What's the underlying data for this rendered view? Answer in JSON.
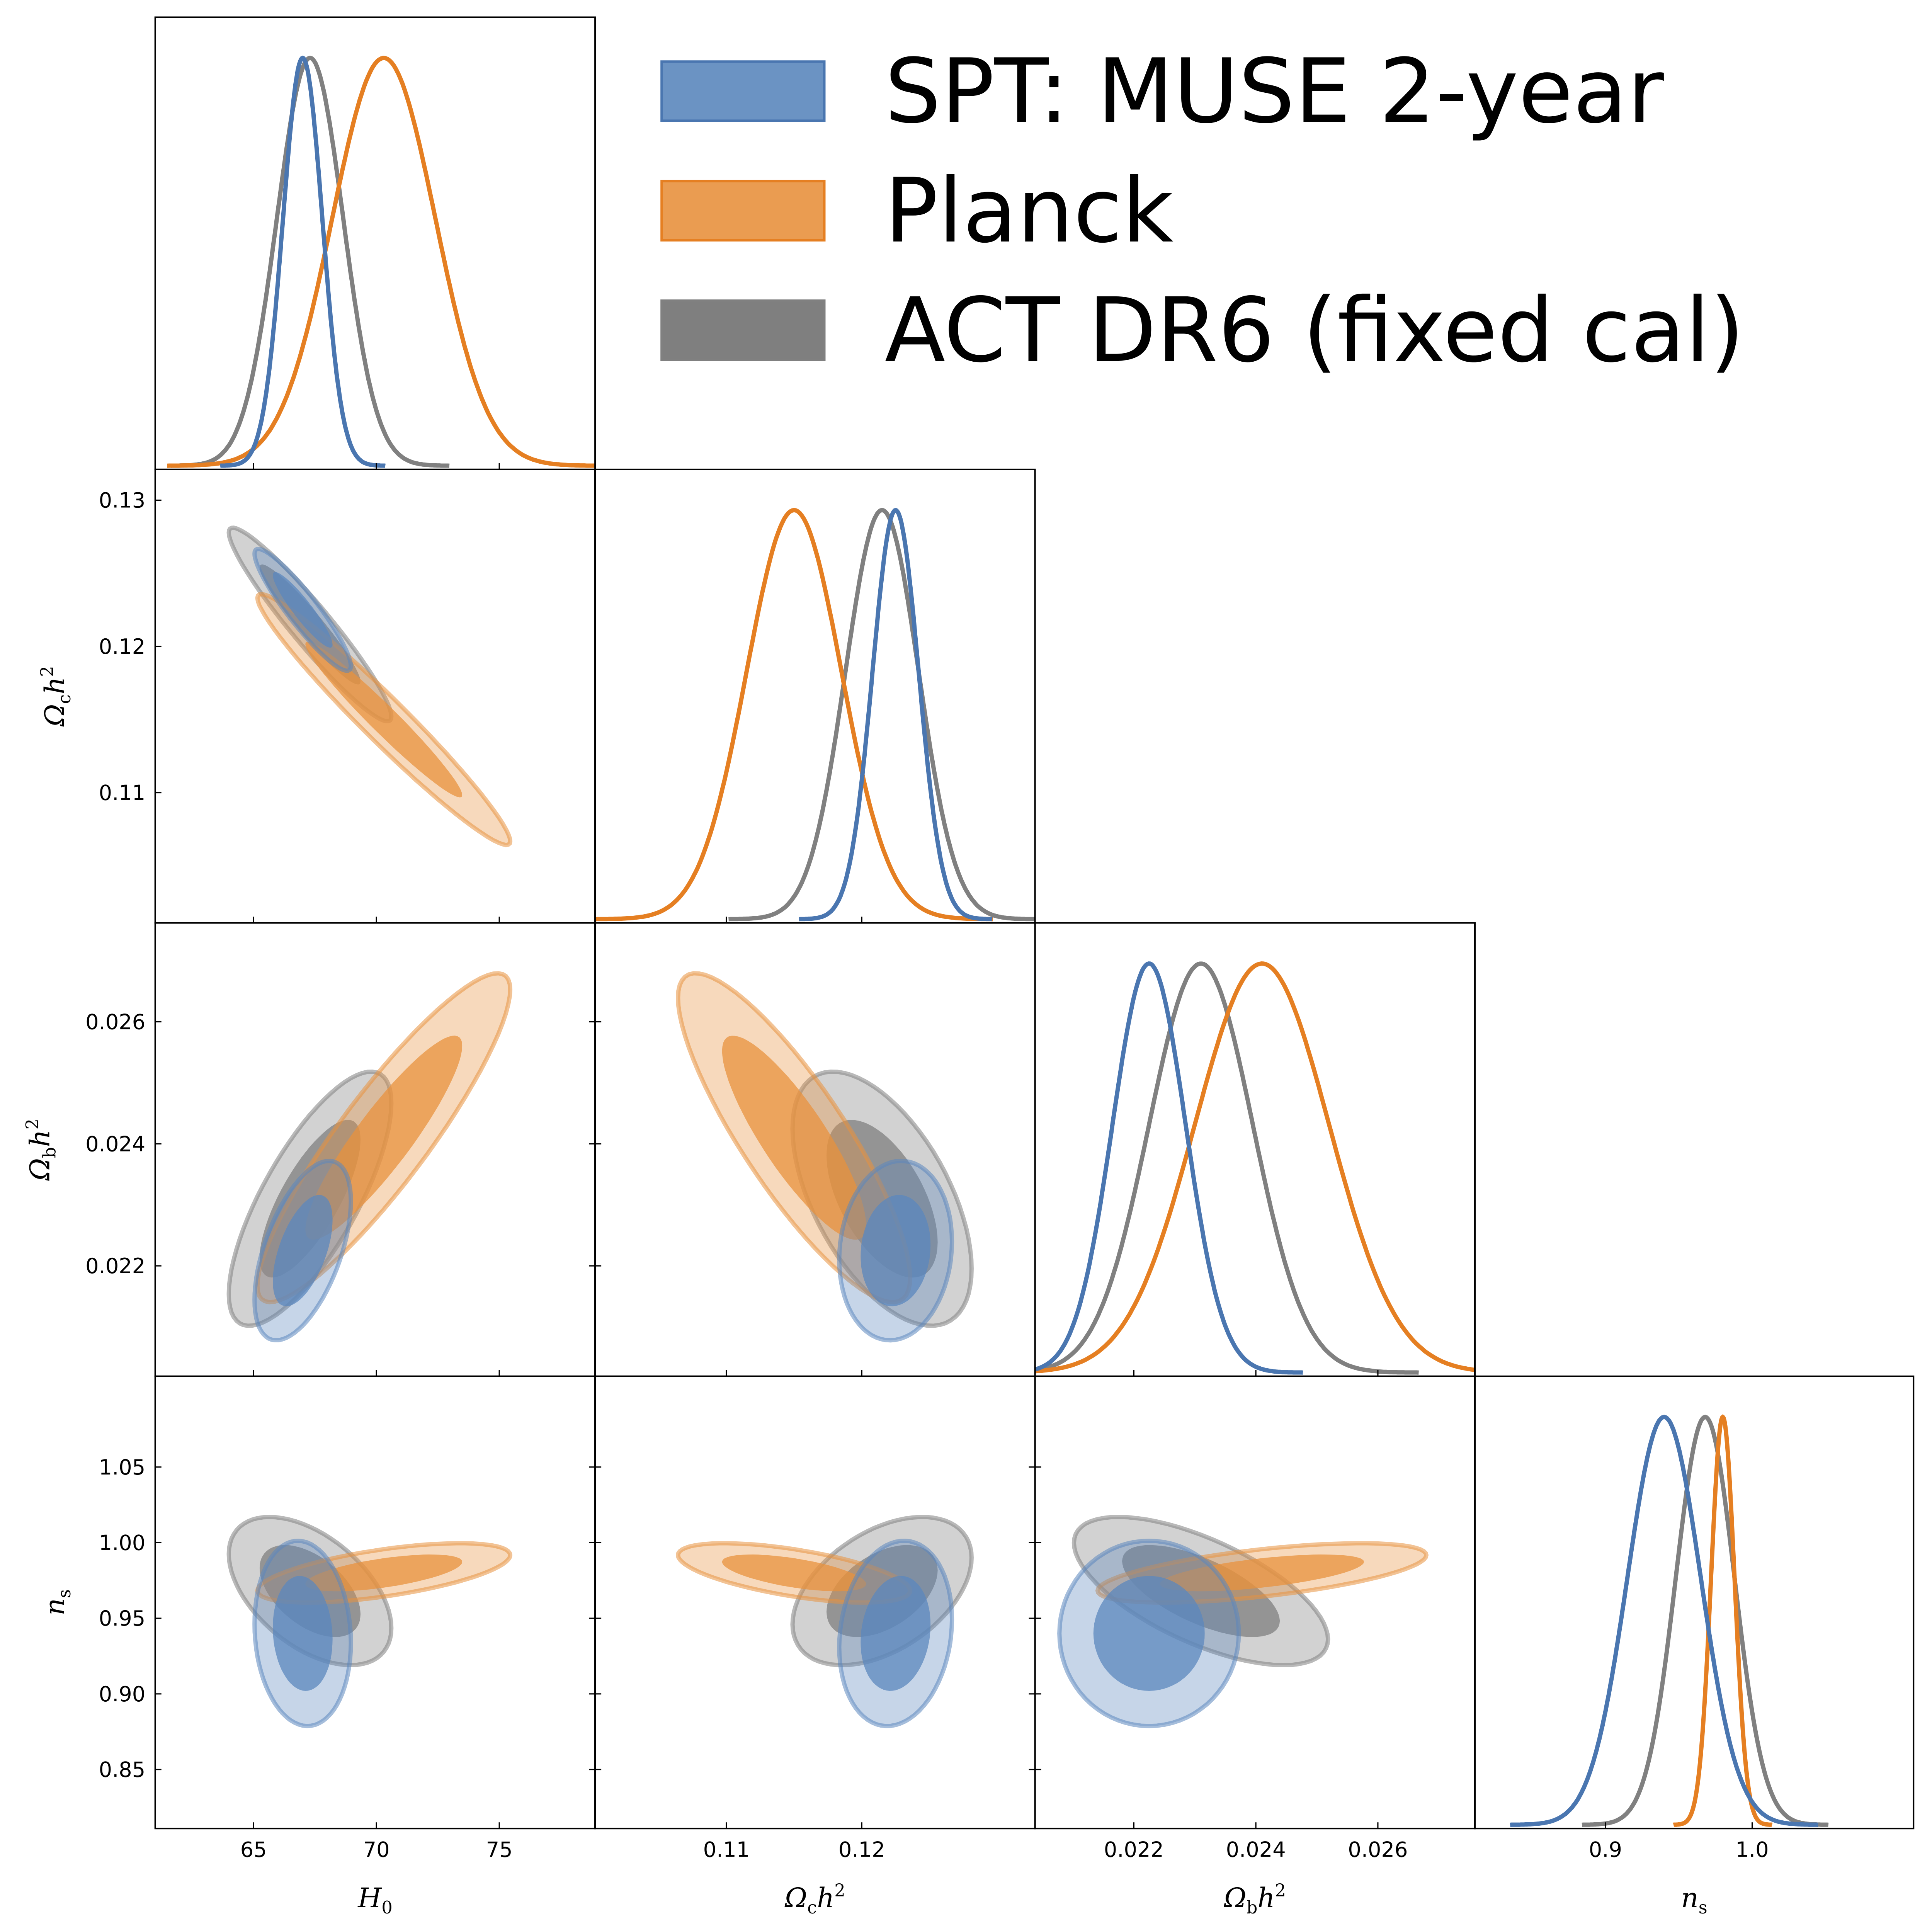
{
  "chart_data": {
    "type": "corner",
    "title": "",
    "parameters": [
      {
        "key": "H0",
        "label": "H₀",
        "range": [
          61.0,
          78.9
        ],
        "ticks": [
          65,
          70,
          75
        ],
        "tick_labels": [
          "65",
          "70",
          "75"
        ]
      },
      {
        "key": "omch2",
        "label": "Ωch²",
        "range": [
          0.1003,
          0.1328
        ],
        "ticks": [
          0.11,
          0.12
        ],
        "tick_labels": [
          "0.11",
          "0.12"
        ],
        "y_range": [
          0.1011,
          0.1321
        ],
        "y_ticks": [
          0.11,
          0.12,
          0.13
        ],
        "y_tick_labels": [
          "0.11",
          "0.12",
          "0.13"
        ]
      },
      {
        "key": "ombh2",
        "label": "Ωbh²",
        "range": [
          0.02038,
          0.02759
        ],
        "ticks": [
          0.022,
          0.024,
          0.026
        ],
        "tick_labels": [
          "0.022",
          "0.024",
          "0.026"
        ],
        "y_range": [
          0.02019,
          0.02762
        ],
        "y_ticks": [
          0.022,
          0.024,
          0.026
        ],
        "y_tick_labels": [
          "0.022",
          "0.024",
          "0.026"
        ]
      },
      {
        "key": "ns",
        "label": "ns",
        "range": [
          0.811,
          1.11
        ],
        "ticks": [
          0.9,
          1.0
        ],
        "tick_labels": [
          "0.9",
          "1.0"
        ],
        "y_range": [
          0.811,
          1.11
        ],
        "y_ticks": [
          0.85,
          0.9,
          0.95,
          1.0,
          1.05
        ],
        "y_tick_labels": [
          "0.85",
          "0.90",
          "0.95",
          "1.00",
          "1.05"
        ]
      }
    ],
    "axis_labels": {
      "H0": "H",
      "H0_sub": "0",
      "omch2": "Ω",
      "omch2_sub": "c",
      "ombh2": "Ω",
      "ombh2_sub": "b",
      "ns": "n",
      "ns_sub": "s",
      "h2": "h",
      "sq": "2"
    },
    "series": [
      {
        "name": "SPT: MUSE 2-year",
        "color": "#4a76b0",
        "fill": "#5b87bd",
        "means": {
          "H0": 67.0,
          "omch2": 0.1225,
          "ombh2": 0.02225,
          "ns": 0.94
        },
        "sigmas": {
          "H0": 0.8,
          "omch2": 0.0017,
          "ombh2": 0.0006,
          "ns": 0.025
        },
        "correlations": {
          "H0_omch2": -0.92,
          "H0_ombh2": 0.55,
          "H0_ns": -0.1,
          "omch2_ombh2": 0.1,
          "omch2_ns": 0.15,
          "ombh2_ns": 0.0
        }
      },
      {
        "name": "Planck",
        "color": "#e57f22",
        "fill": "#e8913e",
        "means": {
          "H0": 70.3,
          "omch2": 0.115,
          "ombh2": 0.0241,
          "ns": 0.98
        },
        "sigmas": {
          "H0": 2.1,
          "omch2": 0.0035,
          "ombh2": 0.0011,
          "ns": 0.008
        },
        "correlations": {
          "H0_omch2": -0.97,
          "H0_ombh2": 0.9,
          "H0_ns": 0.6,
          "omch2_ombh2": -0.85,
          "omch2_ns": -0.6,
          "ombh2_ns": 0.6
        }
      },
      {
        "name": "ACT DR6 (fixed cal)",
        "color": "#808080",
        "fill": "#7f7f7f",
        "means": {
          "H0": 67.3,
          "omch2": 0.1215,
          "ombh2": 0.0231,
          "ns": 0.968
        },
        "sigmas": {
          "H0": 1.35,
          "omch2": 0.0027,
          "ombh2": 0.00085,
          "ns": 0.02
        },
        "correlations": {
          "H0_omch2": -0.95,
          "H0_ombh2": 0.75,
          "H0_ns": -0.5,
          "omch2_ombh2": -0.55,
          "omch2_ns": 0.45,
          "ombh2_ns": -0.65
        }
      }
    ],
    "contour_levels": [
      "68%",
      "95%"
    ],
    "legend": {
      "placement": "top-right",
      "entries": [
        "SPT: MUSE 2-year",
        "Planck",
        "ACT DR6 (fixed cal)"
      ]
    },
    "grid": false
  }
}
